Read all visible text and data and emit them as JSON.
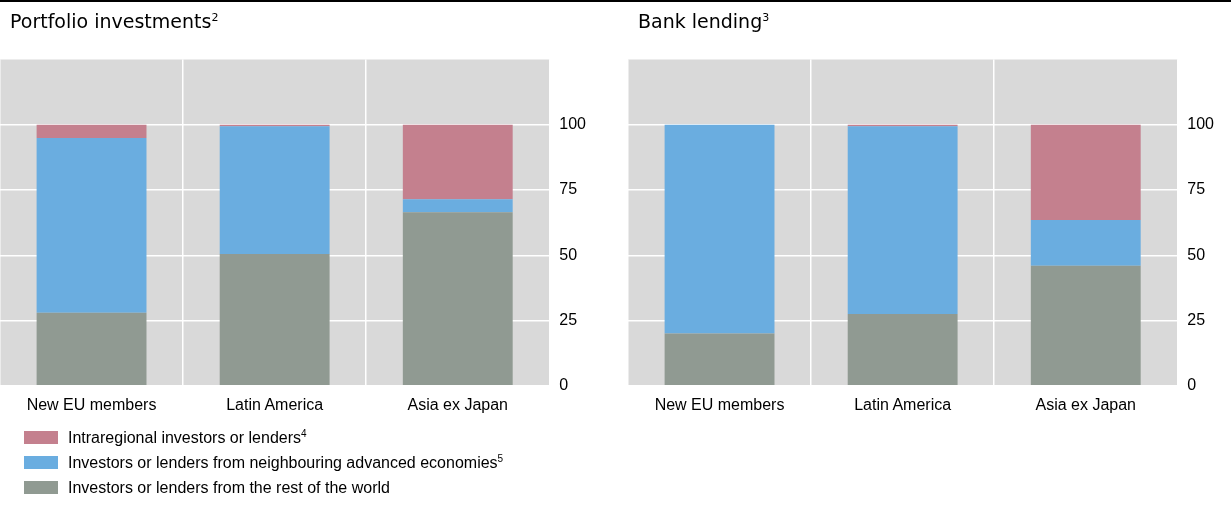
{
  "chart_data": [
    {
      "type": "bar",
      "title": "Portfolio investments$^{2}$",
      "categories": [
        "New EU members",
        "Latin America",
        "Asia ex Japan"
      ],
      "stacked": true,
      "ylim": [
        0,
        125
      ],
      "yticks": [
        0,
        25,
        50,
        75,
        100
      ],
      "grid": true,
      "legend": "bottom",
      "series": [
        {
          "name": "Investors or lenders from the rest of the world",
          "color": "#909a92",
          "values": [
            28,
            50.5,
            66.5
          ]
        },
        {
          "name": "Investors or lenders from neighbouring advanced economies$^{5}$",
          "color": "#6aade0",
          "values": [
            67,
            49,
            5
          ]
        },
        {
          "name": "Intraregional investors or lenders$^{4}$",
          "color": "#c4808e",
          "values": [
            5,
            0.5,
            28.5
          ]
        }
      ]
    },
    {
      "type": "bar",
      "title": "Bank lending$^{3}$",
      "categories": [
        "New EU members",
        "Latin America",
        "Asia ex Japan"
      ],
      "stacked": true,
      "ylim": [
        0,
        125
      ],
      "yticks": [
        0,
        25,
        50,
        75,
        100
      ],
      "grid": true,
      "series": [
        {
          "color": "#909a92",
          "values": [
            20,
            27.5,
            46
          ]
        },
        {
          "color": "#6aade0",
          "values": [
            80,
            72,
            17.5
          ]
        },
        {
          "color": "#c4808e",
          "values": [
            0,
            0.5,
            36.5
          ]
        }
      ]
    }
  ]
}
